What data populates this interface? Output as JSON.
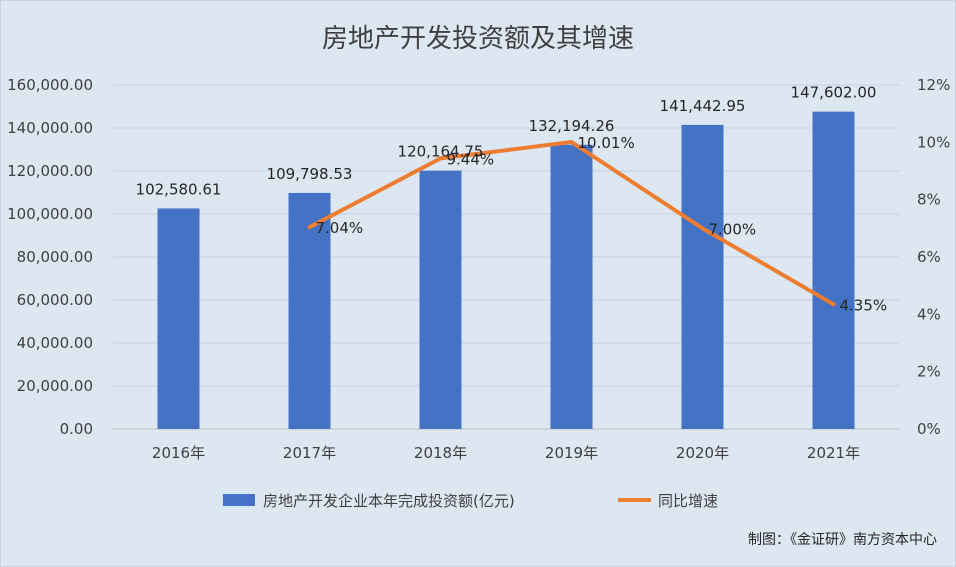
{
  "chart_data": {
    "type": "bar",
    "title": "房地产开发投资额及其增速",
    "categories": [
      "2016年",
      "2017年",
      "2018年",
      "2019年",
      "2020年",
      "2021年"
    ],
    "series": [
      {
        "name": "房地产开发企业本年完成投资额(亿元)",
        "type": "bar",
        "axis": "left",
        "color": "#4472c4",
        "values": [
          102580.61,
          109798.53,
          120164.75,
          132194.26,
          141442.95,
          147602.0
        ],
        "labels": [
          "102,580.61",
          "109,798.53",
          "120,164.75",
          "132,194.26",
          "141,442.95",
          "147,602.00"
        ]
      },
      {
        "name": "同比增速",
        "type": "line",
        "axis": "right",
        "color": "#ed7d31",
        "values": [
          null,
          7.04,
          9.44,
          10.01,
          7.0,
          4.35
        ],
        "labels": [
          "",
          "7.04%",
          "9.44%",
          "10.01%",
          "7.00%",
          "4.35%"
        ]
      }
    ],
    "y_left": {
      "range": [
        0,
        160000
      ],
      "ticks": [
        "0.00",
        "20,000.00",
        "40,000.00",
        "60,000.00",
        "80,000.00",
        "100,000.00",
        "120,000.00",
        "140,000.00",
        "160,000.00"
      ]
    },
    "y_right": {
      "range": [
        0,
        12
      ],
      "ticks": [
        "0%",
        "2%",
        "4%",
        "6%",
        "8%",
        "10%",
        "12%"
      ]
    },
    "grid": true,
    "legend_position": "bottom",
    "credit": "制图：《金证研》南方资本中心"
  }
}
